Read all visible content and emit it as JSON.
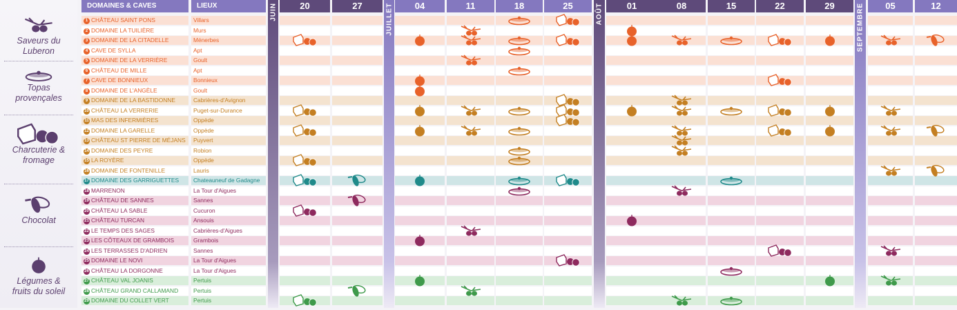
{
  "legend": [
    {
      "icon": "olive-icon",
      "label": "Saveurs du Luberon"
    },
    {
      "icon": "tapas-icon",
      "label": "Topas provençales"
    },
    {
      "icon": "charcuterie-icon",
      "label": "Charcuterie & fromage"
    },
    {
      "icon": "chocolat-icon",
      "label": "Chocolat"
    },
    {
      "icon": "legume-icon",
      "label": "Légumes & fruits du soleil"
    }
  ],
  "header": {
    "domaines": "DOMAINES & CAVES",
    "lieux": "LIEUX"
  },
  "months": [
    {
      "label": "JUIN",
      "dates": [
        "20",
        "27"
      ]
    },
    {
      "label": "JUILLET",
      "dates": [
        "04",
        "11",
        "18",
        "25"
      ]
    },
    {
      "label": "AOÛT",
      "dates": [
        "01",
        "08",
        "15",
        "22",
        "29"
      ]
    },
    {
      "label": "SEPTEMBRE",
      "dates": [
        "05",
        "12"
      ]
    }
  ],
  "colors": {
    "orange": {
      "fg": "#e8622a",
      "bg": "#fbe0d4"
    },
    "brown": {
      "fg": "#c47f22",
      "bg": "#f4e3cf"
    },
    "teal": {
      "fg": "#1f8a8a",
      "bg": "#cfe5e6"
    },
    "purple": {
      "fg": "#8e2a5e",
      "bg": "#f1d4e0"
    },
    "green": {
      "fg": "#3f9a4b",
      "bg": "#d9eedb"
    },
    "header_dark": "#5e4a7a",
    "header_light": "#8478bf"
  },
  "rows": [
    {
      "n": "1",
      "name": "CHÂTEAU SAINT PONS",
      "lieu": "Villars",
      "group": "orange",
      "events": {
        "18": "T",
        "25": "C"
      }
    },
    {
      "n": "2",
      "name": "DOMAINE LA TUILIÈRE",
      "lieu": "Murs",
      "group": "orange",
      "events": {
        "11": "O",
        "01": "L"
      }
    },
    {
      "n": "3",
      "name": "DOMAINE DE LA CITADELLE",
      "lieu": "Ménerbes",
      "group": "orange",
      "events": {
        "20": "C",
        "04": "L",
        "11": "O",
        "18": "T",
        "25": "C",
        "01": "L",
        "08": "O",
        "15": "T",
        "22": "C",
        "29": "L",
        "05": "O",
        "12": "K"
      }
    },
    {
      "n": "4",
      "name": "CAVE DE SYLLA",
      "lieu": "Apt",
      "group": "orange",
      "events": {
        "18": "T"
      }
    },
    {
      "n": "5",
      "name": "DOMAINE DE LA VERRIÈRE",
      "lieu": "Goult",
      "group": "orange",
      "events": {
        "11": "O"
      }
    },
    {
      "n": "6",
      "name": "CHÂTEAU DE MILLE",
      "lieu": "Apt",
      "group": "orange",
      "events": {
        "18": "T"
      }
    },
    {
      "n": "7",
      "name": "CAVE DE BONNIEUX",
      "lieu": "Bonnieux",
      "group": "orange",
      "events": {
        "04": "L",
        "22": "C"
      }
    },
    {
      "n": "8",
      "name": "DOMAINE DE L'ANGÈLE",
      "lieu": "Goult",
      "group": "orange",
      "events": {
        "04": "L"
      }
    },
    {
      "n": "9",
      "name": "DOMAINE DE LA BASTIDONNE",
      "lieu": "Cabrières-d'Avignon",
      "group": "brown",
      "events": {
        "25": "C",
        "08": "O"
      }
    },
    {
      "n": "10",
      "name": "CHÂTEAU LA VERRERIE",
      "lieu": "Puget-sur-Durance",
      "group": "brown",
      "events": {
        "20": "C",
        "04": "L",
        "11": "O",
        "18": "T",
        "25": "C",
        "01": "L",
        "08": "O",
        "15": "T",
        "22": "C",
        "29": "L",
        "05": "O"
      }
    },
    {
      "n": "11",
      "name": "MAS DES INFERMIÈRES",
      "lieu": "Oppède",
      "group": "brown",
      "events": {
        "25": "C"
      }
    },
    {
      "n": "12",
      "name": "DOMAINE LA GARELLE",
      "lieu": "Oppède",
      "group": "brown",
      "events": {
        "20": "C",
        "04": "L",
        "11": "O",
        "18": "T",
        "08": "O",
        "22": "C",
        "29": "L",
        "05": "O",
        "12": "K"
      }
    },
    {
      "n": "13",
      "name": "CHÂTEAU ST PIERRE DE MÉJANS",
      "lieu": "Puyvert",
      "group": "brown",
      "events": {
        "08": "O"
      }
    },
    {
      "n": "14",
      "name": "DOMAINE DES PEYRE",
      "lieu": "Robion",
      "group": "brown",
      "events": {
        "18": "T",
        "08": "O"
      }
    },
    {
      "n": "15",
      "name": "LA ROYÈRE",
      "lieu": "Oppède",
      "group": "brown",
      "events": {
        "20": "C",
        "18": "T"
      }
    },
    {
      "n": "16",
      "name": "DOMAINE DE FONTENILLE",
      "lieu": "Lauris",
      "group": "brown",
      "events": {
        "05": "O",
        "12": "K"
      }
    },
    {
      "n": "17",
      "name": "DOMAINE DES GARRIGUETTES",
      "lieu": "Chateauneuf de Gadagne",
      "group": "teal",
      "events": {
        "20": "C",
        "27": "K",
        "04": "L",
        "18": "T",
        "25": "C",
        "15": "T"
      }
    },
    {
      "n": "18",
      "name": "MARRENON",
      "lieu": "La Tour d'Aigues",
      "group": "purple",
      "events": {
        "18": "T",
        "08": "O"
      }
    },
    {
      "n": "19",
      "name": "CHÂTEAU DE SANNES",
      "lieu": "Sannes",
      "group": "purple",
      "events": {
        "27": "K"
      }
    },
    {
      "n": "20",
      "name": "CHÂTEAU LA SABLE",
      "lieu": "Cucuron",
      "group": "purple",
      "events": {
        "20": "C"
      }
    },
    {
      "n": "21",
      "name": "CHÂTEAU TURCAN",
      "lieu": "Ansouis",
      "group": "purple",
      "events": {
        "01": "L"
      }
    },
    {
      "n": "22",
      "name": "LE TEMPS DES SAGES",
      "lieu": "Cabrières-d'Aigues",
      "group": "purple",
      "events": {
        "11": "O"
      }
    },
    {
      "n": "23",
      "name": "LES CÔTEAUX DE GRAMBOIS",
      "lieu": "Grambois",
      "group": "purple",
      "events": {
        "04": "L"
      }
    },
    {
      "n": "24",
      "name": "LES TERRASSES D'ADRIEN",
      "lieu": "Sannes",
      "group": "purple",
      "events": {
        "22": "C",
        "05": "O"
      }
    },
    {
      "n": "25",
      "name": "DOMAINE LE NOVI",
      "lieu": "La Tour d'Aigues",
      "group": "purple",
      "events": {
        "25": "C"
      }
    },
    {
      "n": "26",
      "name": "CHÂTEAU LA DORGONNE",
      "lieu": "La Tour d'Aigues",
      "group": "purple",
      "events": {
        "15": "T"
      }
    },
    {
      "n": "27",
      "name": "CHÂTEAU VAL JOANIS",
      "lieu": "Pertuis",
      "group": "green",
      "events": {
        "04": "L",
        "29": "L",
        "05": "O"
      }
    },
    {
      "n": "28",
      "name": "CHÂTEAU GRAND CALLAMAND",
      "lieu": "Pertuis",
      "group": "green",
      "events": {
        "27": "K",
        "11": "O"
      }
    },
    {
      "n": "29",
      "name": "DOMAINE DU COLLET VERT",
      "lieu": "Pertuis",
      "group": "green",
      "events": {
        "20": "C",
        "08": "O",
        "15": "T"
      }
    }
  ]
}
